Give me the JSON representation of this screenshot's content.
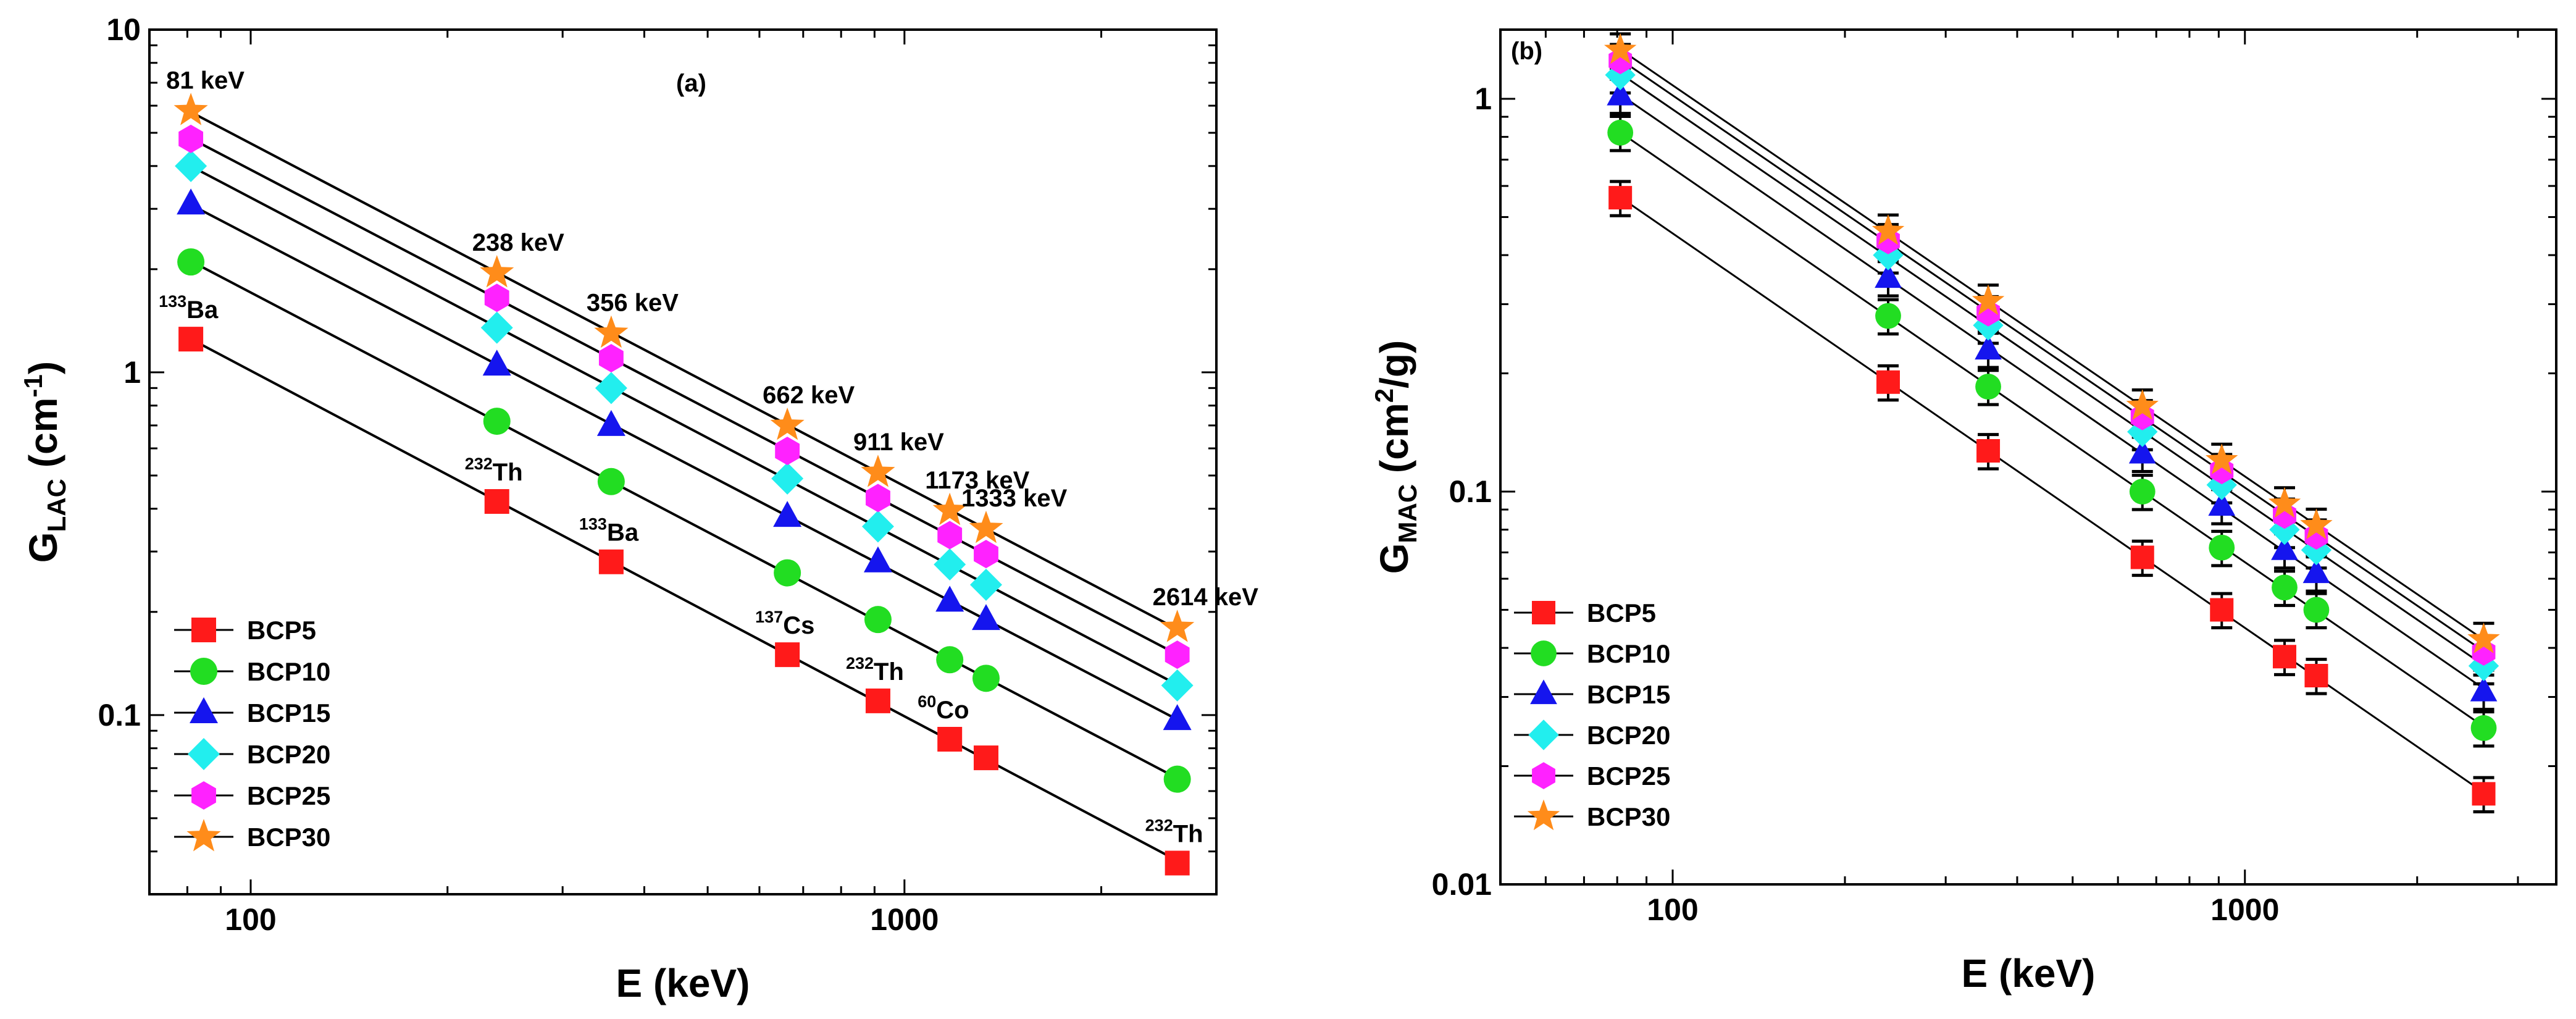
{
  "chart_data": [
    {
      "type": "scatter",
      "panel_label": "(a)",
      "xlabel": "E (keV)",
      "ylabel": "G_LAC (cm-1)",
      "ylabel_parts": {
        "main": "G",
        "sub": "LAC",
        "unit": " (cm",
        "sup": "-1",
        "close": ")"
      },
      "xscale": "log",
      "yscale": "log",
      "xlim": [
        70,
        3000
      ],
      "ylim": [
        0.03,
        10
      ],
      "xticks": [
        {
          "value": 100,
          "label": "100"
        },
        {
          "value": 1000,
          "label": "1000"
        }
      ],
      "yticks": [
        {
          "value": 0.1,
          "label": "0.1"
        },
        {
          "value": 1,
          "label": "1"
        },
        {
          "value": 10,
          "label": "10"
        }
      ],
      "x": [
        81,
        238,
        356,
        662,
        911,
        1173,
        1333,
        2614
      ],
      "series": [
        {
          "name": "BCP5",
          "marker": "square",
          "color": "#ff1a1a",
          "values": [
            1.25,
            0.42,
            0.28,
            0.15,
            0.11,
            0.085,
            0.075,
            0.037
          ]
        },
        {
          "name": "BCP10",
          "marker": "circle",
          "color": "#22dd22",
          "values": [
            2.1,
            0.72,
            0.48,
            0.26,
            0.19,
            0.145,
            0.128,
            0.065
          ]
        },
        {
          "name": "BCP15",
          "marker": "triangle",
          "color": "#1515ee",
          "values": [
            3.1,
            1.05,
            0.7,
            0.38,
            0.28,
            0.215,
            0.19,
            0.097
          ]
        },
        {
          "name": "BCP20",
          "marker": "diamond",
          "color": "#22eeee",
          "values": [
            4.0,
            1.35,
            0.9,
            0.49,
            0.355,
            0.275,
            0.24,
            0.122
          ]
        },
        {
          "name": "BCP25",
          "marker": "hexagon",
          "color": "#ff22ff",
          "values": [
            4.8,
            1.65,
            1.1,
            0.59,
            0.43,
            0.335,
            0.295,
            0.15
          ]
        },
        {
          "name": "BCP30",
          "marker": "star",
          "color": "#ff8c1a",
          "values": [
            5.8,
            1.95,
            1.3,
            0.7,
            0.51,
            0.395,
            0.35,
            0.18
          ]
        }
      ],
      "energy_labels": [
        {
          "x": 81,
          "y": 5.8,
          "text": "81 keV"
        },
        {
          "x": 238,
          "y": 1.95,
          "text": "238 keV"
        },
        {
          "x": 356,
          "y": 1.3,
          "text": "356 keV"
        },
        {
          "x": 662,
          "y": 0.7,
          "text": "662 keV"
        },
        {
          "x": 911,
          "y": 0.51,
          "text": "911 keV"
        },
        {
          "x": 1173,
          "y": 0.395,
          "text": "1173 keV"
        },
        {
          "x": 1333,
          "y": 0.35,
          "text": "1333 keV"
        },
        {
          "x": 2614,
          "y": 0.18,
          "text": "2614 keV"
        }
      ],
      "source_labels": [
        {
          "x": 81,
          "y": 1.25,
          "sup": "133",
          "text": "Ba"
        },
        {
          "x": 238,
          "y": 0.42,
          "sup": "232",
          "text": "Th"
        },
        {
          "x": 356,
          "y": 0.28,
          "sup": "133",
          "text": "Ba"
        },
        {
          "x": 662,
          "y": 0.15,
          "sup": "137",
          "text": "Cs"
        },
        {
          "x": 911,
          "y": 0.11,
          "sup": "232",
          "text": "Th"
        },
        {
          "x": 1173,
          "y": 0.085,
          "sup": "60",
          "text": "Co"
        },
        {
          "x": 2614,
          "y": 0.037,
          "sup": "232",
          "text": "Th"
        }
      ],
      "legend_position": "lower-left"
    },
    {
      "type": "scatter",
      "panel_label": "(b)",
      "xlabel": "E (keV)",
      "ylabel": "G_MAC (cm2/g)",
      "ylabel_parts": {
        "main": "G",
        "sub": "MAC",
        "unit": " (cm",
        "sup": "2",
        "close": "/g)"
      },
      "xscale": "log",
      "yscale": "log",
      "xlim": [
        50,
        3500
      ],
      "ylim": [
        0.01,
        1.5
      ],
      "xticks": [
        {
          "value": 100,
          "label": "100"
        },
        {
          "value": 1000,
          "label": "1000"
        }
      ],
      "yticks": [
        {
          "value": 0.01,
          "label": "0.01"
        },
        {
          "value": 0.1,
          "label": "0.1"
        },
        {
          "value": 1,
          "label": "1"
        }
      ],
      "x": [
        81,
        238,
        356,
        662,
        911,
        1173,
        1333,
        2614
      ],
      "error_fraction": 0.1,
      "series": [
        {
          "name": "BCP5",
          "marker": "square",
          "color": "#ff1a1a",
          "values": [
            0.56,
            0.19,
            0.127,
            0.068,
            0.05,
            0.038,
            0.034,
            0.017
          ]
        },
        {
          "name": "BCP10",
          "marker": "circle",
          "color": "#22dd22",
          "values": [
            0.82,
            0.28,
            0.185,
            0.1,
            0.072,
            0.057,
            0.05,
            0.025
          ]
        },
        {
          "name": "BCP15",
          "marker": "triangle",
          "color": "#1515ee",
          "values": [
            1.02,
            0.35,
            0.23,
            0.125,
            0.092,
            0.071,
            0.062,
            0.031
          ]
        },
        {
          "name": "BCP20",
          "marker": "diamond",
          "color": "#22eeee",
          "values": [
            1.15,
            0.4,
            0.265,
            0.142,
            0.104,
            0.08,
            0.071,
            0.036
          ]
        },
        {
          "name": "BCP25",
          "marker": "hexagon",
          "color": "#ff22ff",
          "values": [
            1.25,
            0.435,
            0.285,
            0.155,
            0.113,
            0.087,
            0.077,
            0.039
          ]
        },
        {
          "name": "BCP30",
          "marker": "star",
          "color": "#ff8c1a",
          "values": [
            1.33,
            0.46,
            0.305,
            0.165,
            0.12,
            0.093,
            0.082,
            0.042
          ]
        }
      ],
      "legend_position": "lower-left"
    }
  ]
}
